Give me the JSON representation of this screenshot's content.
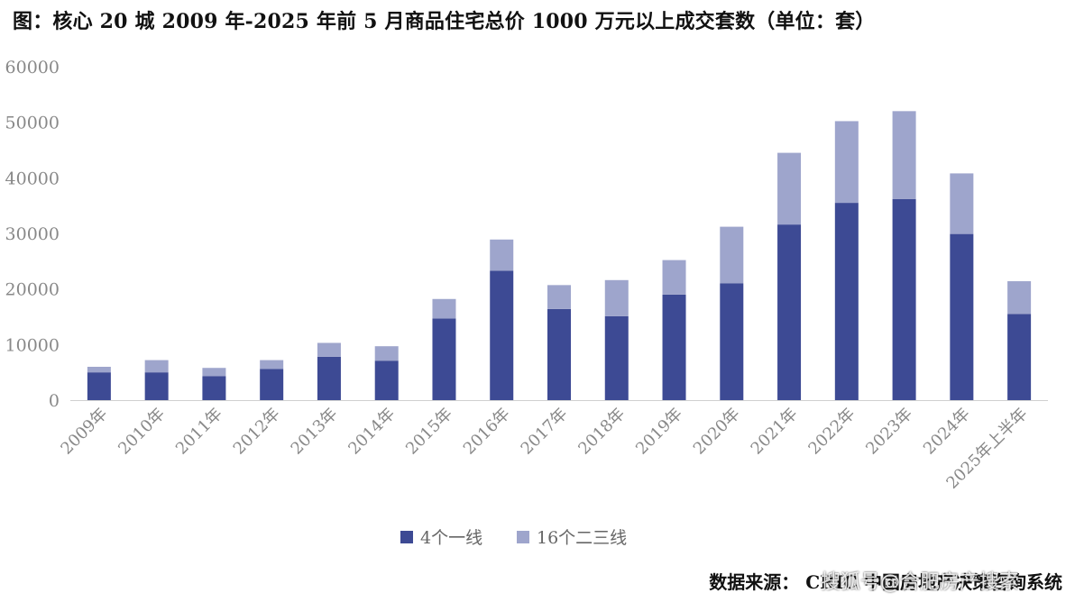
{
  "title": "图：核心 20 城 2009 年-2025 年前 5 月商品住宅总价 1000 万元以上成交套数（单位：套）",
  "source": "数据来源：  CRIC 中国房地产决策咨询系统",
  "watermark": "搜狐号@合肥房产搜索",
  "colors": {
    "series1": "#3d4a94",
    "series2": "#9ea5cc",
    "axis_text": "#888888",
    "axis_line": "#d0d0d0"
  },
  "chart_data": {
    "type": "bar",
    "stacked": true,
    "categories": [
      "2009年",
      "2010年",
      "2011年",
      "2012年",
      "2013年",
      "2014年",
      "2015年",
      "2016年",
      "2017年",
      "2018年",
      "2019年",
      "2020年",
      "2021年",
      "2022年",
      "2023年",
      "2024年",
      "2025年上半年"
    ],
    "series": [
      {
        "name": "4个一线",
        "values": [
          5000,
          5000,
          4300,
          5600,
          7800,
          7100,
          14700,
          23300,
          16400,
          15100,
          19000,
          21000,
          31600,
          35500,
          36200,
          29900,
          15500
        ]
      },
      {
        "name": "16个二三线",
        "values": [
          1000,
          2200,
          1500,
          1600,
          2500,
          2600,
          3500,
          5600,
          4300,
          6500,
          6200,
          10200,
          12900,
          14700,
          15800,
          10900,
          5900
        ]
      }
    ],
    "ylim": [
      0,
      60000
    ],
    "yticks": [
      0,
      10000,
      20000,
      30000,
      40000,
      50000,
      60000
    ],
    "grid": false,
    "legend": "bottom"
  }
}
